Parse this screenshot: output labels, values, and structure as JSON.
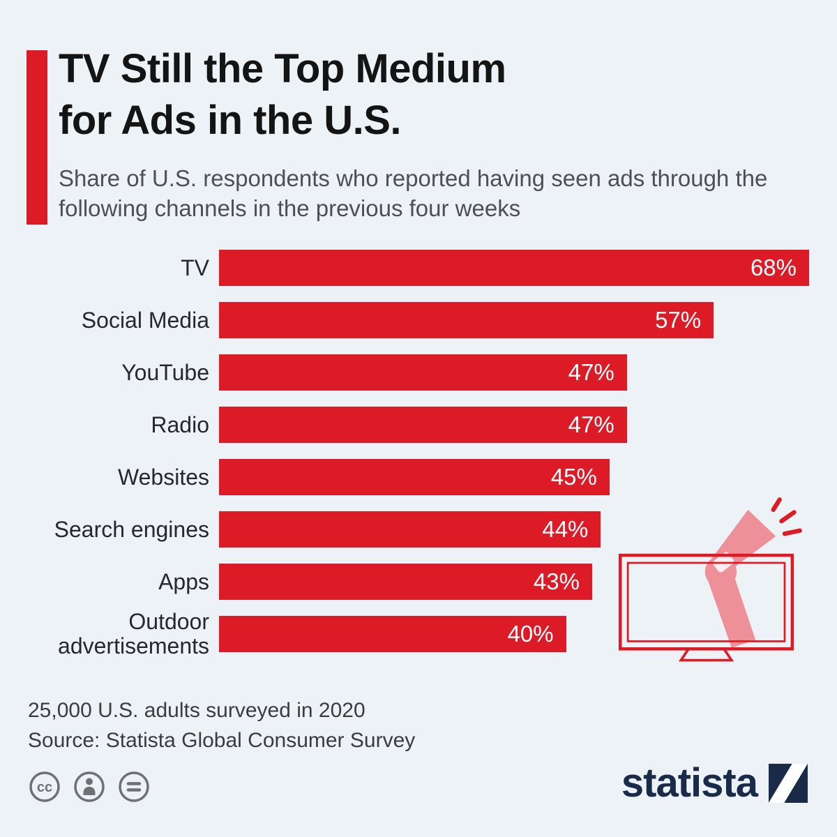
{
  "colors": {
    "background": "#edf2f6",
    "red": "#dc1b26",
    "pink": "#ee9097",
    "navy": "#1a2b49",
    "gray": "#6e7073"
  },
  "header": {
    "title_line1": "TV Still the Top Medium",
    "title_line2": "for Ads in the U.S.",
    "subtitle": "Share of U.S. respondents who reported having seen ads through the following channels in the previous four weeks"
  },
  "chart_data": {
    "type": "bar",
    "orientation": "horizontal",
    "title": "TV Still the Top Medium for Ads in the U.S.",
    "subtitle": "Share of U.S. respondents who reported having seen ads through the following channels in the previous four weeks",
    "categories": [
      "TV",
      "Social Media",
      "YouTube",
      "Radio",
      "Websites",
      "Search engines",
      "Apps",
      "Outdoor advertisements"
    ],
    "values": [
      68,
      57,
      47,
      47,
      45,
      44,
      43,
      40
    ],
    "unit": "%",
    "xlim": [
      0,
      68
    ],
    "grid": false,
    "bar_color": "#dc1b26",
    "value_label_position": "inside-end",
    "value_label_color": "#ffffff",
    "note": "25,000 U.S. adults surveyed in 2020",
    "source": "Source: Statista Global Consumer Survey"
  },
  "footer": {
    "sample_note": "25,000 U.S. adults surveyed in 2020",
    "source": "Source: Statista Global Consumer Survey"
  },
  "license": {
    "cc_label": "cc",
    "icons": [
      "cc-icon",
      "attribution-icon",
      "equals-icon"
    ]
  },
  "branding": {
    "logo_text": "statista"
  }
}
